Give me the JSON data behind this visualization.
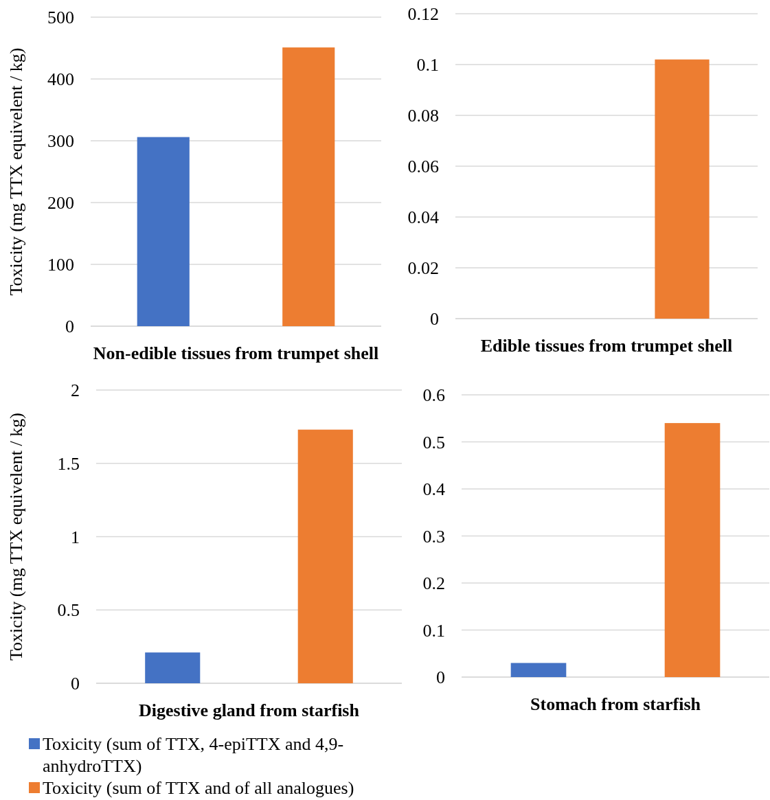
{
  "chart_data": [
    {
      "type": "bar",
      "categories": [
        null,
        null
      ],
      "xlabel": "Non-edible tissues from trumpet shell",
      "ylabel": "Toxicity (mg TTX equivelent / kg)",
      "ylim": [
        0,
        500
      ],
      "yticks": [
        0,
        100,
        200,
        300,
        400,
        500
      ],
      "grid": "y",
      "legend": false,
      "series": [
        {
          "color": "#4472c4",
          "values": [
            306,
            null
          ]
        },
        {
          "color": "#ed7d31",
          "values": [
            null,
            451
          ]
        }
      ]
    },
    {
      "type": "bar",
      "categories": [
        null,
        null
      ],
      "xlabel": "Edible tissues from trumpet shell",
      "ylim": [
        0,
        0.12
      ],
      "yticks": [
        0,
        0.02,
        0.04,
        0.06,
        0.08,
        0.1,
        0.12
      ],
      "grid": "y",
      "legend": false,
      "series": [
        {
          "color": "#4472c4",
          "values": [
            0,
            null
          ]
        },
        {
          "color": "#ed7d31",
          "values": [
            null,
            0.102
          ]
        }
      ]
    },
    {
      "type": "bar",
      "categories": [
        null,
        null
      ],
      "xlabel": "Digestive gland from starfish",
      "ylabel": "Toxicity (mg TTX equivelent / kg)",
      "ylim": [
        0,
        2
      ],
      "yticks": [
        0,
        0.5,
        1,
        1.5,
        2
      ],
      "grid": "y",
      "legend": "bottom",
      "series": [
        {
          "name": "Toxicity (sum of TTX, 4-epiTTX and 4,9-anhydroTTX)",
          "color": "#4472c4",
          "values": [
            0.21,
            null
          ]
        },
        {
          "name": "Toxicity (sum of TTX and of all analogues)",
          "color": "#ed7d31",
          "values": [
            null,
            1.73
          ]
        }
      ]
    },
    {
      "type": "bar",
      "categories": [
        null,
        null
      ],
      "xlabel": "Stomach from starfish",
      "ylim": [
        0,
        0.6
      ],
      "yticks": [
        0,
        0.1,
        0.2,
        0.3,
        0.4,
        0.5,
        0.6
      ],
      "grid": "y",
      "legend": false,
      "series": [
        {
          "color": "#4472c4",
          "values": [
            0.03,
            null
          ]
        },
        {
          "color": "#ed7d31",
          "values": [
            null,
            0.54
          ]
        }
      ]
    }
  ]
}
